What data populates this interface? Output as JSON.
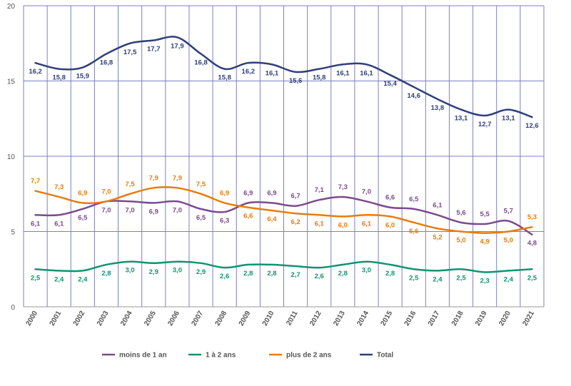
{
  "chart_data": {
    "type": "line",
    "x": [
      "2000",
      "2001",
      "2002",
      "2003",
      "2004",
      "2005",
      "2006",
      "2007",
      "2008",
      "2009",
      "2010",
      "2011",
      "2012",
      "2013",
      "2014",
      "2015",
      "2016",
      "2017",
      "2018",
      "2019",
      "2020",
      "2021"
    ],
    "ylim": [
      0,
      20
    ],
    "yticks": [
      0,
      5,
      10,
      15,
      20
    ],
    "grid": true,
    "legend_position": "bottom",
    "series": [
      {
        "name": "moins de 1 an",
        "color": "#7b4a8e",
        "values": [
          6.1,
          6.1,
          6.5,
          7.0,
          7.0,
          6.9,
          7.0,
          6.5,
          6.3,
          6.9,
          6.9,
          6.7,
          7.1,
          7.3,
          7.0,
          6.6,
          6.5,
          6.1,
          5.6,
          5.5,
          5.7,
          4.8
        ],
        "labels": [
          "6,1",
          "6,1",
          "6,5",
          "7,0",
          "7,0",
          "6,9",
          "7,0",
          "6,5",
          "6,3",
          "6,9",
          "6,9",
          "6,7",
          "7,1",
          "7,3",
          "7,0",
          "6,6",
          "6,5",
          "6,1",
          "5,6",
          "5,5",
          "5,7",
          "4,8"
        ]
      },
      {
        "name": "1 à 2 ans",
        "color": "#0f9473",
        "values": [
          2.5,
          2.4,
          2.4,
          2.8,
          3.0,
          2.9,
          3.0,
          2.9,
          2.6,
          2.8,
          2.8,
          2.7,
          2.6,
          2.8,
          3.0,
          2.8,
          2.5,
          2.4,
          2.5,
          2.3,
          2.4,
          2.5
        ],
        "labels": [
          "2,5",
          "2,4",
          "2,4",
          "2,8",
          "3,0",
          "2,9",
          "3,0",
          "2,9",
          "2,6",
          "2,8",
          "2,8",
          "2,7",
          "2,6",
          "2,8",
          "3,0",
          "2,8",
          "2,5",
          "2,4",
          "2,5",
          "2,3",
          "2,4",
          "2,5"
        ]
      },
      {
        "name": "plus de 2 ans",
        "color": "#e87c0c",
        "values": [
          7.7,
          7.3,
          6.9,
          7.0,
          7.5,
          7.9,
          7.9,
          7.5,
          6.9,
          6.6,
          6.4,
          6.2,
          6.1,
          6.0,
          6.1,
          6.0,
          5.6,
          5.2,
          5.0,
          4.9,
          5.0,
          5.3
        ],
        "labels": [
          "7,7",
          "7,3",
          "6,9",
          "7,0",
          "7,5",
          "7,9",
          "7,9",
          "7,5",
          "6,9",
          "6,6",
          "6,4",
          "6,2",
          "6,1",
          "6,0",
          "6,1",
          "6,0",
          "5,6",
          "5,2",
          "5,0",
          "4,9",
          "5,0",
          "5,3"
        ]
      },
      {
        "name": "Total",
        "color": "#2f3f7a",
        "values": [
          16.2,
          15.8,
          15.9,
          16.8,
          17.5,
          17.7,
          17.9,
          16.8,
          15.8,
          16.2,
          16.1,
          15.6,
          15.8,
          16.1,
          16.1,
          15.4,
          14.6,
          13.8,
          13.1,
          12.7,
          13.1,
          12.6
        ],
        "labels": [
          "16,2",
          "15,8",
          "15,9",
          "16,8",
          "17,5",
          "17,7",
          "17,9",
          "16,8",
          "15,8",
          "16,2",
          "16,1",
          "15,6",
          "15,8",
          "16,1",
          "16,1",
          "15,4",
          "14,6",
          "13,8",
          "13,1",
          "12,7",
          "13,1",
          "12,6"
        ]
      }
    ]
  }
}
